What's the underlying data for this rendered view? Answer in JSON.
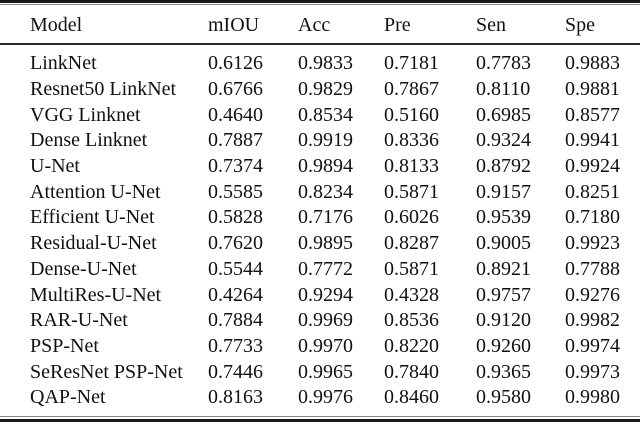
{
  "table": {
    "columns": [
      "Model",
      "mIOU",
      "Acc",
      "Pre",
      "Sen",
      "Spe"
    ],
    "rows": [
      {
        "model": "LinkNet",
        "values": [
          "0.6126",
          "0.9833",
          "0.7181",
          "0.7783",
          "0.9883"
        ]
      },
      {
        "model": "Resnet50 LinkNet",
        "values": [
          "0.6766",
          "0.9829",
          "0.7867",
          "0.8110",
          "0.9881"
        ]
      },
      {
        "model": "VGG Linknet",
        "values": [
          "0.4640",
          "0.8534",
          "0.5160",
          "0.6985",
          "0.8577"
        ]
      },
      {
        "model": "Dense Linknet",
        "values": [
          "0.7887",
          "0.9919",
          "0.8336",
          "0.9324",
          "0.9941"
        ]
      },
      {
        "model": "U-Net",
        "values": [
          "0.7374",
          "0.9894",
          "0.8133",
          "0.8792",
          "0.9924"
        ]
      },
      {
        "model": "Attention U-Net",
        "values": [
          "0.5585",
          "0.8234",
          "0.5871",
          "0.9157",
          "0.8251"
        ]
      },
      {
        "model": "Efficient U-Net",
        "values": [
          "0.5828",
          "0.7176",
          "0.6026",
          "0.9539",
          "0.7180"
        ]
      },
      {
        "model": "Residual-U-Net",
        "values": [
          "0.7620",
          "0.9895",
          "0.8287",
          "0.9005",
          "0.9923"
        ]
      },
      {
        "model": "Dense-U-Net",
        "values": [
          "0.5544",
          "0.7772",
          "0.5871",
          "0.8921",
          "0.7788"
        ]
      },
      {
        "model": "MultiRes-U-Net",
        "values": [
          "0.4264",
          "0.9294",
          "0.4328",
          "0.9757",
          "0.9276"
        ]
      },
      {
        "model": "RAR-U-Net",
        "values": [
          "0.7884",
          "0.9969",
          "0.8536",
          "0.9120",
          "0.9982"
        ]
      },
      {
        "model": "PSP-Net",
        "values": [
          "0.7733",
          "0.9970",
          "0.8220",
          "0.9260",
          "0.9974"
        ]
      },
      {
        "model": "SeResNet PSP-Net",
        "values": [
          "0.7446",
          "0.9965",
          "0.7840",
          "0.9365",
          "0.9973"
        ]
      },
      {
        "model": "QAP-Net",
        "values": [
          "0.8163",
          "0.9976",
          "0.8460",
          "0.9580",
          "0.9980"
        ]
      }
    ]
  },
  "chart_data": {
    "type": "table",
    "columns": [
      "Model",
      "mIOU",
      "Acc",
      "Pre",
      "Sen",
      "Spe"
    ],
    "rows": [
      [
        "LinkNet",
        0.6126,
        0.9833,
        0.7181,
        0.7783,
        0.9883
      ],
      [
        "Resnet50 LinkNet",
        0.6766,
        0.9829,
        0.7867,
        0.811,
        0.9881
      ],
      [
        "VGG Linknet",
        0.464,
        0.8534,
        0.516,
        0.6985,
        0.8577
      ],
      [
        "Dense Linknet",
        0.7887,
        0.9919,
        0.8336,
        0.9324,
        0.9941
      ],
      [
        "U-Net",
        0.7374,
        0.9894,
        0.8133,
        0.8792,
        0.9924
      ],
      [
        "Attention U-Net",
        0.5585,
        0.8234,
        0.5871,
        0.9157,
        0.8251
      ],
      [
        "Efficient U-Net",
        0.5828,
        0.7176,
        0.6026,
        0.9539,
        0.718
      ],
      [
        "Residual-U-Net",
        0.762,
        0.9895,
        0.8287,
        0.9005,
        0.9923
      ],
      [
        "Dense-U-Net",
        0.5544,
        0.7772,
        0.5871,
        0.8921,
        0.7788
      ],
      [
        "MultiRes-U-Net",
        0.4264,
        0.9294,
        0.4328,
        0.9757,
        0.9276
      ],
      [
        "RAR-U-Net",
        0.7884,
        0.9969,
        0.8536,
        0.912,
        0.9982
      ],
      [
        "PSP-Net",
        0.7733,
        0.997,
        0.822,
        0.926,
        0.9974
      ],
      [
        "SeResNet PSP-Net",
        0.7446,
        0.9965,
        0.784,
        0.9365,
        0.9973
      ],
      [
        "QAP-Net",
        0.8163,
        0.9976,
        0.846,
        0.958,
        0.998
      ]
    ]
  },
  "colors": {
    "text": "#111111",
    "rule_thick": "#1a1a1a",
    "rule_thin": "#8a8a8a",
    "background": "#ffffff"
  }
}
